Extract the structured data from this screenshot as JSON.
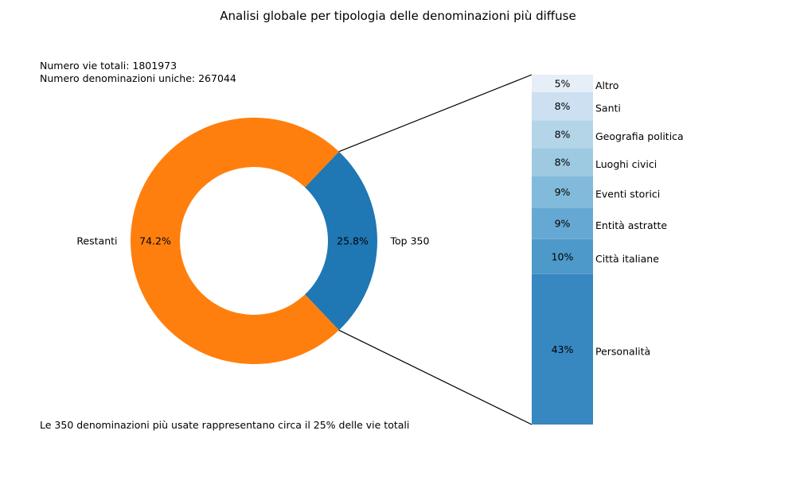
{
  "chart_data": {
    "title": "Analisi globale per tipologia delle denominazioni più diffuse",
    "annotations": {
      "total_streets": "Numero vie totali: 1801973",
      "unique_names": "Numero denominazioni uniche: 267044",
      "footer": "Le 350 denominazioni più usate rappresentano circa il 25% delle vie totali"
    },
    "charts": [
      {
        "type": "pie",
        "style": "donut",
        "labels": [
          "Top 350",
          "Restanti"
        ],
        "values": [
          25.8,
          74.2
        ],
        "value_labels": [
          "25.8%",
          "74.2%"
        ],
        "colors": [
          "#1f77b4",
          "#ff7f0e"
        ]
      },
      {
        "type": "bar",
        "stacked": true,
        "categories": [
          "Personalità",
          "Città italiane",
          "Entità astratte",
          "Eventi storici",
          "Luoghi civici",
          "Geografia politica",
          "Santi",
          "Altro"
        ],
        "values": [
          43,
          10,
          9,
          9,
          8,
          8,
          8,
          5
        ],
        "value_labels": [
          "43%",
          "10%",
          "9%",
          "9%",
          "8%",
          "8%",
          "8%",
          "5%"
        ],
        "colors": [
          "#3787c0",
          "#4d99ca",
          "#65a8d3",
          "#82badb",
          "#9dcae1",
          "#b4d4e8",
          "#cde0f1",
          "#e6eff8"
        ]
      }
    ]
  }
}
